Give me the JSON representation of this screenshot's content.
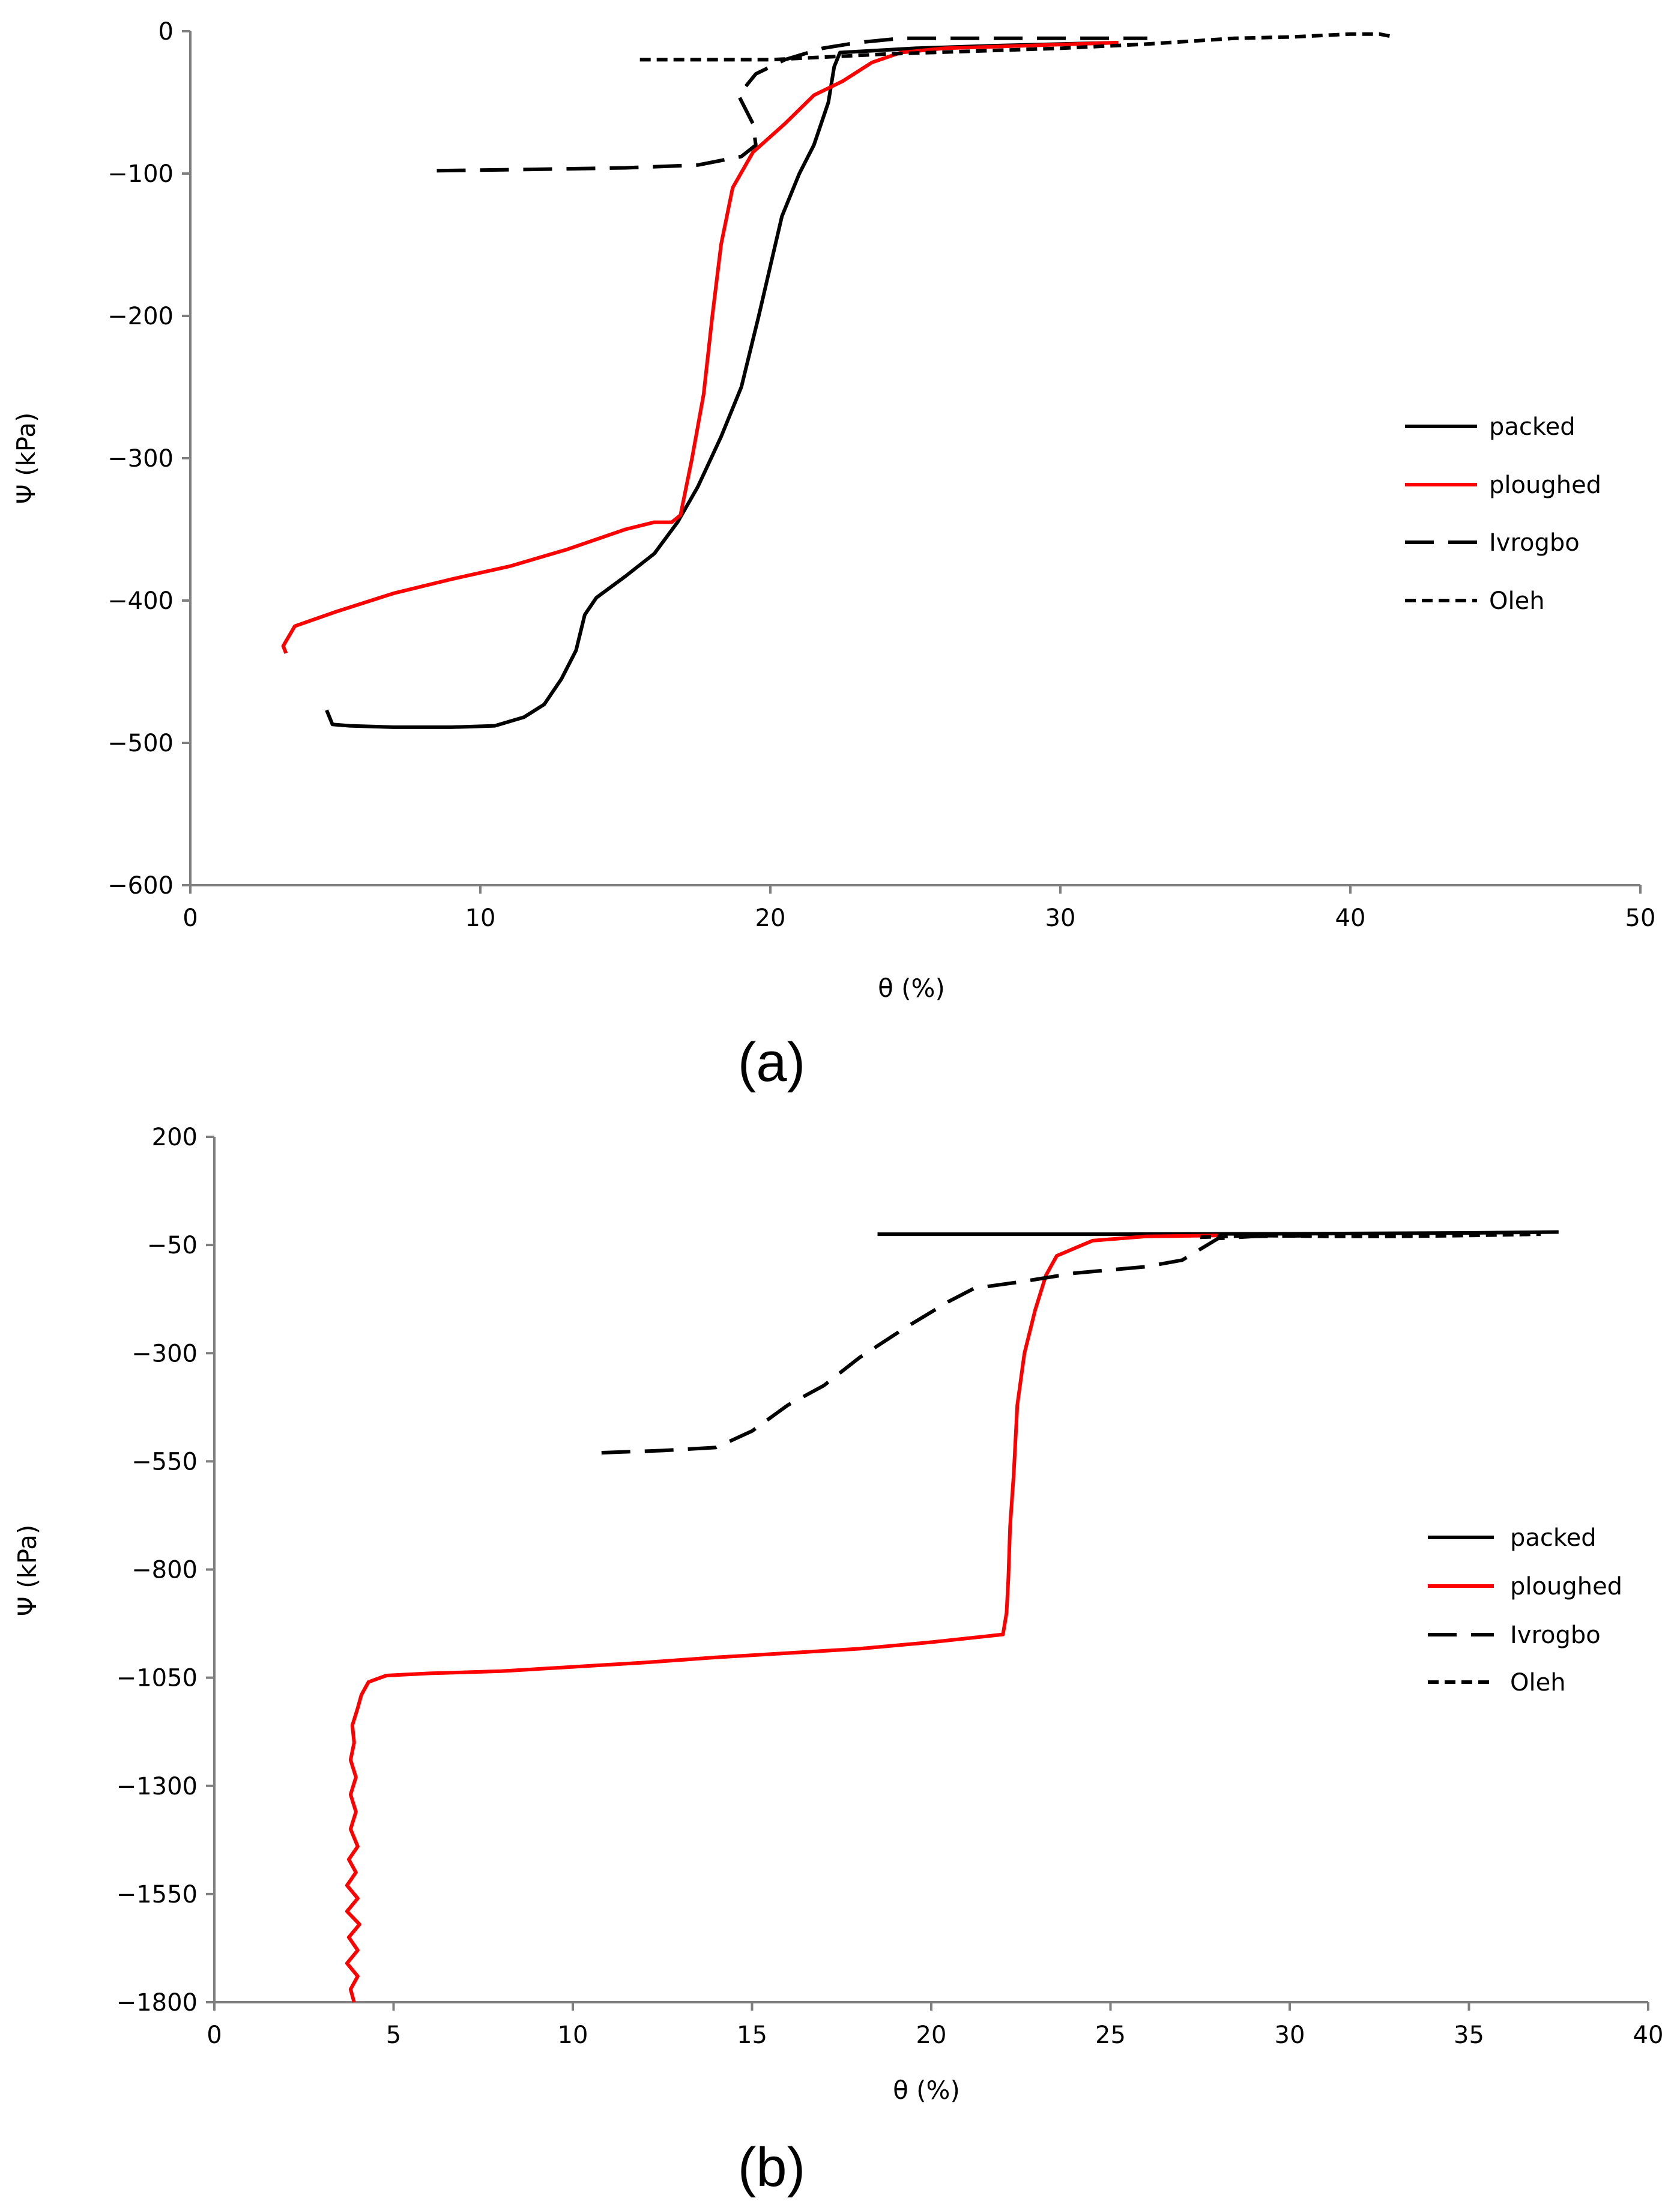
{
  "chart_data": [
    {
      "type": "line",
      "panel_label": "(a)",
      "xlabel": "θ (%)",
      "ylabel": "Ψ (kPa)",
      "xlim": [
        0,
        50
      ],
      "ylim": [
        -600,
        0
      ],
      "x_ticks": [
        0,
        10,
        20,
        30,
        40,
        50
      ],
      "y_ticks": [
        0,
        -100,
        -200,
        -300,
        -400,
        -500,
        -600
      ],
      "x_tick_labels": [
        "0",
        "10",
        "20",
        "30",
        "40",
        "50"
      ],
      "y_tick_labels": [
        "0",
        "−100",
        "−200",
        "−300",
        "−400",
        "−500",
        "−600"
      ],
      "grid": false,
      "legend_position": "right",
      "series": [
        {
          "name": "packed",
          "color": "#000000",
          "style": "solid",
          "points": [
            [
              4.7,
              -477
            ],
            [
              4.9,
              -487
            ],
            [
              5.5,
              -488
            ],
            [
              7,
              -489
            ],
            [
              9,
              -489
            ],
            [
              10.5,
              -488
            ],
            [
              11.5,
              -482
            ],
            [
              12.2,
              -473
            ],
            [
              12.8,
              -455
            ],
            [
              13.3,
              -435
            ],
            [
              13.6,
              -410
            ],
            [
              14,
              -398
            ],
            [
              15,
              -383
            ],
            [
              16,
              -367
            ],
            [
              16.8,
              -345
            ],
            [
              17.5,
              -320
            ],
            [
              18.3,
              -285
            ],
            [
              19,
              -250
            ],
            [
              19.6,
              -200
            ],
            [
              20,
              -165
            ],
            [
              20.4,
              -130
            ],
            [
              21,
              -100
            ],
            [
              21.5,
              -80
            ],
            [
              22,
              -50
            ],
            [
              22.2,
              -25
            ],
            [
              22.4,
              -15
            ],
            [
              25,
              -12
            ],
            [
              28,
              -10
            ],
            [
              32,
              -8
            ]
          ]
        },
        {
          "name": "ploughed",
          "color": "#ff0000",
          "style": "solid",
          "points": [
            [
              3.3,
              -437
            ],
            [
              3.2,
              -432
            ],
            [
              3.6,
              -418
            ],
            [
              5,
              -408
            ],
            [
              7,
              -395
            ],
            [
              9,
              -385
            ],
            [
              11,
              -376
            ],
            [
              13,
              -364
            ],
            [
              15,
              -350
            ],
            [
              16,
              -345
            ],
            [
              16.6,
              -345
            ],
            [
              16.9,
              -340
            ],
            [
              17.3,
              -300
            ],
            [
              17.7,
              -255
            ],
            [
              18,
              -200
            ],
            [
              18.3,
              -150
            ],
            [
              18.7,
              -110
            ],
            [
              19.4,
              -85
            ],
            [
              20.5,
              -65
            ],
            [
              21.5,
              -45
            ],
            [
              22.5,
              -35
            ],
            [
              23.5,
              -22
            ],
            [
              24.5,
              -15
            ],
            [
              26,
              -12
            ],
            [
              29,
              -10
            ],
            [
              32,
              -8
            ]
          ]
        },
        {
          "name": "Ivrogbo",
          "color": "#000000",
          "style": "long-dash",
          "points": [
            [
              8.5,
              -98
            ],
            [
              12,
              -97
            ],
            [
              15,
              -96
            ],
            [
              17.5,
              -94
            ],
            [
              19,
              -88
            ],
            [
              19.5,
              -80
            ],
            [
              19.4,
              -65
            ],
            [
              18.9,
              -45
            ],
            [
              19.5,
              -30
            ],
            [
              20.5,
              -20
            ],
            [
              21.8,
              -12
            ],
            [
              23,
              -8
            ],
            [
              24.5,
              -5
            ],
            [
              28,
              -5
            ],
            [
              33,
              -5
            ]
          ]
        },
        {
          "name": "Oleh",
          "color": "#000000",
          "style": "short-dash",
          "points": [
            [
              15.5,
              -20
            ],
            [
              18,
              -20
            ],
            [
              20,
              -20
            ],
            [
              22,
              -18
            ],
            [
              24,
              -16
            ],
            [
              27,
              -14
            ],
            [
              30,
              -12
            ],
            [
              33,
              -9
            ],
            [
              36,
              -5
            ],
            [
              38,
              -4
            ],
            [
              40,
              -2
            ],
            [
              41,
              -2
            ],
            [
              41.5,
              -4
            ]
          ]
        }
      ]
    },
    {
      "type": "line",
      "panel_label": "(b)",
      "xlabel": "θ (%)",
      "ylabel": "Ψ (kPa)",
      "xlim": [
        0,
        40
      ],
      "ylim": [
        -1800,
        200
      ],
      "x_ticks": [
        0,
        5,
        10,
        15,
        20,
        25,
        30,
        35,
        40
      ],
      "y_ticks": [
        200,
        -50,
        -300,
        -550,
        -800,
        -1050,
        -1300,
        -1550,
        -1800
      ],
      "x_tick_labels": [
        "0",
        "5",
        "10",
        "15",
        "20",
        "25",
        "30",
        "35",
        "40"
      ],
      "y_tick_labels": [
        "200",
        "−50",
        "−300",
        "−550",
        "−800",
        "−1050",
        "−1300",
        "−1550",
        "−1800"
      ],
      "grid": false,
      "legend_position": "right",
      "series": [
        {
          "name": "packed",
          "color": "#000000",
          "style": "solid",
          "points": [
            [
              18.5,
              -25
            ],
            [
              25,
              -25
            ],
            [
              30,
              -24
            ],
            [
              35,
              -22
            ],
            [
              37.5,
              -20
            ]
          ]
        },
        {
          "name": "ploughed",
          "color": "#ff0000",
          "style": "solid",
          "points": [
            [
              3.9,
              -1800
            ],
            [
              3.8,
              -1770
            ],
            [
              4,
              -1740
            ],
            [
              3.7,
              -1710
            ],
            [
              4,
              -1680
            ],
            [
              3.75,
              -1650
            ],
            [
              4.05,
              -1620
            ],
            [
              3.7,
              -1590
            ],
            [
              4,
              -1560
            ],
            [
              3.7,
              -1530
            ],
            [
              3.95,
              -1500
            ],
            [
              3.75,
              -1470
            ],
            [
              4,
              -1440
            ],
            [
              3.8,
              -1400
            ],
            [
              3.95,
              -1360
            ],
            [
              3.8,
              -1320
            ],
            [
              3.95,
              -1280
            ],
            [
              3.8,
              -1240
            ],
            [
              3.9,
              -1200
            ],
            [
              3.85,
              -1160
            ],
            [
              4,
              -1120
            ],
            [
              4.1,
              -1090
            ],
            [
              4.3,
              -1060
            ],
            [
              4.8,
              -1045
            ],
            [
              6,
              -1040
            ],
            [
              8,
              -1035
            ],
            [
              10,
              -1025
            ],
            [
              12,
              -1015
            ],
            [
              14,
              -1003
            ],
            [
              16,
              -993
            ],
            [
              18,
              -983
            ],
            [
              20,
              -968
            ],
            [
              22,
              -950
            ],
            [
              22.1,
              -900
            ],
            [
              22.15,
              -820
            ],
            [
              22.2,
              -700
            ],
            [
              22.3,
              -580
            ],
            [
              22.4,
              -420
            ],
            [
              22.6,
              -300
            ],
            [
              22.9,
              -200
            ],
            [
              23.2,
              -120
            ],
            [
              23.5,
              -75
            ],
            [
              24.5,
              -40
            ],
            [
              26,
              -30
            ],
            [
              28,
              -28
            ]
          ]
        },
        {
          "name": "Ivrogbo",
          "color": "#000000",
          "style": "long-dash",
          "points": [
            [
              10.8,
              -530
            ],
            [
              12.5,
              -525
            ],
            [
              14,
              -518
            ],
            [
              15,
              -480
            ],
            [
              16,
              -420
            ],
            [
              17,
              -375
            ],
            [
              18,
              -310
            ],
            [
              19.3,
              -240
            ],
            [
              20.5,
              -180
            ],
            [
              21.2,
              -150
            ],
            [
              22.5,
              -135
            ],
            [
              24,
              -115
            ],
            [
              26,
              -100
            ],
            [
              27,
              -85
            ],
            [
              28,
              -35
            ],
            [
              29,
              -30
            ],
            [
              31,
              -28
            ]
          ]
        },
        {
          "name": "Oleh",
          "color": "#000000",
          "style": "short-dash",
          "points": [
            [
              27.5,
              -32
            ],
            [
              29,
              -28
            ],
            [
              31,
              -30
            ],
            [
              33,
              -30
            ],
            [
              35,
              -28
            ],
            [
              37,
              -25
            ]
          ]
        }
      ]
    }
  ]
}
